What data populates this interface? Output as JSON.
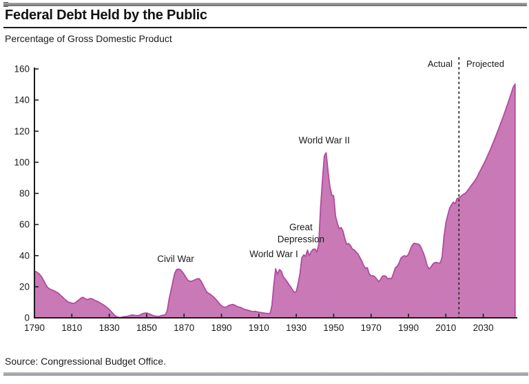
{
  "header": {
    "title": "Federal Debt Held by the Public",
    "subtitle": "Percentage of Gross Domestic Product"
  },
  "footer": {
    "source": "Source: Congressional Budget Office."
  },
  "chart_data": {
    "type": "area",
    "title": "Federal Debt Held by the Public",
    "ylabel": "Percentage of Gross Domestic Product",
    "xlim": [
      1790,
      2047
    ],
    "ylim": [
      0,
      160
    ],
    "grid": false,
    "x_ticks": [
      1790,
      1810,
      1830,
      1850,
      1870,
      1890,
      1910,
      1930,
      1950,
      1970,
      1990,
      2010,
      2030
    ],
    "y_ticks": [
      0,
      20,
      40,
      60,
      80,
      100,
      120,
      140,
      160
    ],
    "divider": {
      "year": 2017,
      "actual_label": "Actual",
      "projected_label": "Projected"
    },
    "annotations": [
      {
        "lines": [
          "Civil War"
        ],
        "year": 1865.5,
        "value": 35.8
      },
      {
        "lines": [
          "World War I"
        ],
        "year": 1918,
        "value": 39.0
      },
      {
        "lines": [
          "Great",
          "Depression"
        ],
        "year": 1932.5,
        "value": 56.3
      },
      {
        "lines": [
          "World War II"
        ],
        "year": 1945,
        "value": 112.1
      }
    ],
    "colors": {
      "fill": "#c97ab6",
      "outline": "#b04a9e",
      "axis": "#1a1a1a",
      "divider_line": "#2b2b2b",
      "text": "#1a1a1a"
    },
    "series": [
      {
        "name": "Federal debt held by the public (% of GDP)",
        "points": [
          [
            1790,
            30
          ],
          [
            1791,
            29.6
          ],
          [
            1792,
            28.7
          ],
          [
            1793,
            27.6
          ],
          [
            1794,
            26
          ],
          [
            1795,
            23.8
          ],
          [
            1796,
            21.5
          ],
          [
            1797,
            19.6
          ],
          [
            1798,
            18.6
          ],
          [
            1799,
            18.1
          ],
          [
            1800,
            17.6
          ],
          [
            1801,
            17
          ],
          [
            1802,
            16.4
          ],
          [
            1803,
            15.6
          ],
          [
            1804,
            14.4
          ],
          [
            1805,
            13.4
          ],
          [
            1806,
            12.2
          ],
          [
            1807,
            11.1
          ],
          [
            1808,
            10.2
          ],
          [
            1809,
            9.8
          ],
          [
            1810,
            9.5
          ],
          [
            1811,
            9.2
          ],
          [
            1812,
            9.8
          ],
          [
            1813,
            10.8
          ],
          [
            1814,
            11.8
          ],
          [
            1815,
            12.8
          ],
          [
            1816,
            13.2
          ],
          [
            1817,
            12.3
          ],
          [
            1818,
            11.8
          ],
          [
            1819,
            12
          ],
          [
            1820,
            12.4
          ],
          [
            1821,
            12.1
          ],
          [
            1822,
            11.4
          ],
          [
            1823,
            10.9
          ],
          [
            1824,
            10.4
          ],
          [
            1825,
            9.6
          ],
          [
            1826,
            9
          ],
          [
            1827,
            8.2
          ],
          [
            1828,
            7.4
          ],
          [
            1829,
            6.4
          ],
          [
            1830,
            5.4
          ],
          [
            1831,
            4.1
          ],
          [
            1832,
            2.8
          ],
          [
            1833,
            1.5
          ],
          [
            1834,
            0.7
          ],
          [
            1835,
            0.3
          ],
          [
            1836,
            0.2
          ],
          [
            1837,
            0.5
          ],
          [
            1838,
            0.8
          ],
          [
            1839,
            0.9
          ],
          [
            1840,
            1
          ],
          [
            1841,
            1.4
          ],
          [
            1842,
            1.8
          ],
          [
            1843,
            1.7
          ],
          [
            1844,
            1.5
          ],
          [
            1845,
            1.4
          ],
          [
            1846,
            1.6
          ],
          [
            1847,
            2.2
          ],
          [
            1848,
            2.8
          ],
          [
            1849,
            3
          ],
          [
            1850,
            3.1
          ],
          [
            1851,
            2.7
          ],
          [
            1852,
            2.2
          ],
          [
            1853,
            1.7
          ],
          [
            1854,
            1.3
          ],
          [
            1855,
            1
          ],
          [
            1856,
            0.9
          ],
          [
            1857,
            1
          ],
          [
            1858,
            1.5
          ],
          [
            1859,
            1.7
          ],
          [
            1860,
            1.8
          ],
          [
            1861,
            4.5
          ],
          [
            1862,
            12
          ],
          [
            1863,
            17.5
          ],
          [
            1864,
            23
          ],
          [
            1865,
            28.5
          ],
          [
            1866,
            31
          ],
          [
            1867,
            31.4
          ],
          [
            1868,
            31
          ],
          [
            1869,
            29.6
          ],
          [
            1870,
            28
          ],
          [
            1871,
            26
          ],
          [
            1872,
            24.2
          ],
          [
            1873,
            23.6
          ],
          [
            1874,
            23.5
          ],
          [
            1875,
            24
          ],
          [
            1876,
            24.6
          ],
          [
            1877,
            25
          ],
          [
            1878,
            25.2
          ],
          [
            1879,
            23.8
          ],
          [
            1880,
            21.5
          ],
          [
            1881,
            19
          ],
          [
            1882,
            16.8
          ],
          [
            1883,
            15.8
          ],
          [
            1884,
            15.2
          ],
          [
            1885,
            14.2
          ],
          [
            1886,
            13.2
          ],
          [
            1887,
            11.8
          ],
          [
            1888,
            10.5
          ],
          [
            1889,
            9
          ],
          [
            1890,
            7.8
          ],
          [
            1891,
            7
          ],
          [
            1892,
            6.8
          ],
          [
            1893,
            7.2
          ],
          [
            1894,
            8
          ],
          [
            1895,
            8.3
          ],
          [
            1896,
            8.6
          ],
          [
            1897,
            8.2
          ],
          [
            1898,
            7.6
          ],
          [
            1899,
            7
          ],
          [
            1900,
            6.8
          ],
          [
            1901,
            6.2
          ],
          [
            1902,
            5.6
          ],
          [
            1903,
            5.2
          ],
          [
            1904,
            5
          ],
          [
            1905,
            4.6
          ],
          [
            1906,
            4.2
          ],
          [
            1907,
            4
          ],
          [
            1908,
            4.2
          ],
          [
            1909,
            3.9
          ],
          [
            1910,
            3.6
          ],
          [
            1911,
            3.4
          ],
          [
            1912,
            3.2
          ],
          [
            1913,
            3
          ],
          [
            1914,
            2.9
          ],
          [
            1915,
            2.8
          ],
          [
            1916,
            2.7
          ],
          [
            1917,
            8
          ],
          [
            1918,
            21
          ],
          [
            1919,
            31.5
          ],
          [
            1920,
            28
          ],
          [
            1921,
            31
          ],
          [
            1922,
            30
          ],
          [
            1923,
            26.5
          ],
          [
            1924,
            25
          ],
          [
            1925,
            23.5
          ],
          [
            1926,
            21.5
          ],
          [
            1927,
            20
          ],
          [
            1928,
            17.8
          ],
          [
            1929,
            16.3
          ],
          [
            1930,
            16.8
          ],
          [
            1931,
            22
          ],
          [
            1932,
            28.5
          ],
          [
            1933,
            38.5
          ],
          [
            1934,
            40.5
          ],
          [
            1935,
            39.5
          ],
          [
            1936,
            43.5
          ],
          [
            1937,
            40
          ],
          [
            1938,
            42.5
          ],
          [
            1939,
            44
          ],
          [
            1940,
            44.2
          ],
          [
            1941,
            42.3
          ],
          [
            1942,
            47
          ],
          [
            1943,
            70.9
          ],
          [
            1944,
            88.3
          ],
          [
            1945,
            104
          ],
          [
            1946,
            106.1
          ],
          [
            1947,
            93.9
          ],
          [
            1948,
            84.2
          ],
          [
            1949,
            79
          ],
          [
            1950,
            78.5
          ],
          [
            1951,
            65.5
          ],
          [
            1952,
            60.7
          ],
          [
            1953,
            57.2
          ],
          [
            1954,
            58
          ],
          [
            1955,
            55.7
          ],
          [
            1956,
            50.7
          ],
          [
            1957,
            47.3
          ],
          [
            1958,
            47.8
          ],
          [
            1959,
            46.5
          ],
          [
            1960,
            44.3
          ],
          [
            1961,
            43.6
          ],
          [
            1962,
            42.3
          ],
          [
            1963,
            41.1
          ],
          [
            1964,
            38.8
          ],
          [
            1965,
            36.7
          ],
          [
            1966,
            33.7
          ],
          [
            1967,
            31.9
          ],
          [
            1968,
            32.2
          ],
          [
            1969,
            28.3
          ],
          [
            1970,
            27
          ],
          [
            1971,
            27.1
          ],
          [
            1972,
            26.4
          ],
          [
            1973,
            25
          ],
          [
            1974,
            23.2
          ],
          [
            1975,
            24.5
          ],
          [
            1976,
            26.7
          ],
          [
            1977,
            27.1
          ],
          [
            1978,
            26.6
          ],
          [
            1979,
            24.9
          ],
          [
            1980,
            25.5
          ],
          [
            1981,
            25.2
          ],
          [
            1982,
            28.6
          ],
          [
            1983,
            32.2
          ],
          [
            1984,
            33.1
          ],
          [
            1985,
            35.3
          ],
          [
            1986,
            38.4
          ],
          [
            1987,
            39.5
          ],
          [
            1988,
            39.9
          ],
          [
            1989,
            39.4
          ],
          [
            1990,
            40.8
          ],
          [
            1991,
            44
          ],
          [
            1992,
            46.6
          ],
          [
            1993,
            47.9
          ],
          [
            1994,
            47.7
          ],
          [
            1995,
            47.5
          ],
          [
            1996,
            46.8
          ],
          [
            1997,
            44.5
          ],
          [
            1998,
            41.6
          ],
          [
            1999,
            38.2
          ],
          [
            2000,
            33.6
          ],
          [
            2001,
            31.4
          ],
          [
            2002,
            32.6
          ],
          [
            2003,
            34.5
          ],
          [
            2004,
            35.5
          ],
          [
            2005,
            35.6
          ],
          [
            2006,
            35.3
          ],
          [
            2007,
            35.2
          ],
          [
            2008,
            39.3
          ],
          [
            2009,
            52.3
          ],
          [
            2010,
            60.9
          ],
          [
            2011,
            65.9
          ],
          [
            2012,
            70.4
          ],
          [
            2013,
            72.6
          ],
          [
            2014,
            74.4
          ],
          [
            2015,
            73.3
          ],
          [
            2016,
            76.7
          ],
          [
            2017,
            77
          ],
          [
            2018,
            78
          ],
          [
            2019,
            79.1
          ],
          [
            2020,
            79.8
          ],
          [
            2021,
            80.9
          ],
          [
            2022,
            82.4
          ],
          [
            2023,
            84.1
          ],
          [
            2024,
            85.7
          ],
          [
            2025,
            87.3
          ],
          [
            2026,
            89
          ],
          [
            2027,
            91.3
          ],
          [
            2028,
            93.8
          ],
          [
            2029,
            96
          ],
          [
            2030,
            98.3
          ],
          [
            2031,
            100.7
          ],
          [
            2032,
            103.3
          ],
          [
            2033,
            106
          ],
          [
            2034,
            108.8
          ],
          [
            2035,
            111.7
          ],
          [
            2036,
            114.7
          ],
          [
            2037,
            117.7
          ],
          [
            2038,
            120.8
          ],
          [
            2039,
            124
          ],
          [
            2040,
            127.2
          ],
          [
            2041,
            130.5
          ],
          [
            2042,
            133.9
          ],
          [
            2043,
            137.3
          ],
          [
            2044,
            140.9
          ],
          [
            2045,
            144.5
          ],
          [
            2046,
            148.2
          ],
          [
            2047,
            150.3
          ]
        ]
      }
    ]
  }
}
